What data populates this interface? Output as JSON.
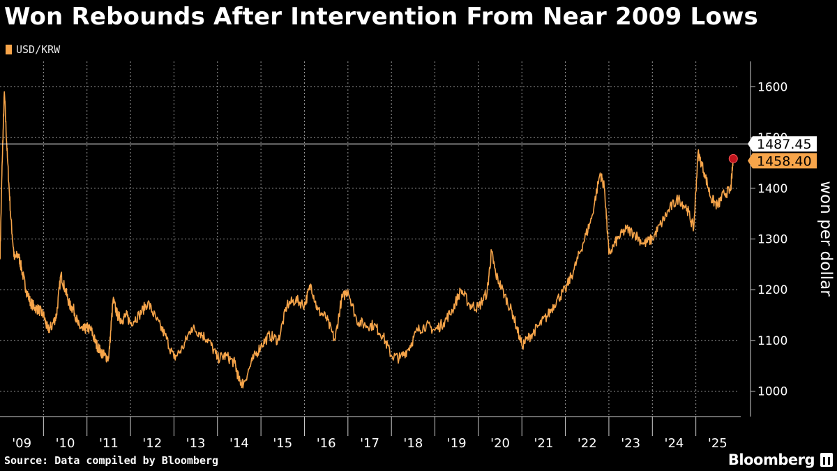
{
  "title": "Won Rebounds After Intervention From Near 2009 Lows",
  "source": "Source: Data compiled by Bloomberg",
  "brand": "Bloomberg",
  "colors": {
    "series": "#f7a54a",
    "background": "#000000",
    "marker": "#c0141c",
    "grid": "#9a9a9a"
  },
  "chart_data": {
    "type": "line",
    "title": "Won Rebounds After Intervention From Near 2009 Lows",
    "ylabel": "won per dollar",
    "ylim": [
      950,
      1650
    ],
    "yticks": [
      1000,
      1100,
      1200,
      1300,
      1400,
      1500,
      1600
    ],
    "xlim": [
      2009.0,
      2026.0
    ],
    "xtick_labels": [
      "'09",
      "'10",
      "'11",
      "'12",
      "'13",
      "'14",
      "'15",
      "'16",
      "'17",
      "'18",
      "'19",
      "'20",
      "'21",
      "'22",
      "'23",
      "'24",
      "'25"
    ],
    "grid": true,
    "legend": "top-left",
    "series": [
      {
        "name": "USD/KRW",
        "x": [
          2009.0,
          2009.05,
          2009.1,
          2009.17,
          2009.25,
          2009.33,
          2009.42,
          2009.5,
          2009.6,
          2009.7,
          2009.8,
          2009.9,
          2010.0,
          2010.1,
          2010.2,
          2010.3,
          2010.4,
          2010.5,
          2010.6,
          2010.7,
          2010.8,
          2010.9,
          2011.0,
          2011.1,
          2011.2,
          2011.3,
          2011.4,
          2011.5,
          2011.6,
          2011.7,
          2011.8,
          2011.9,
          2012.0,
          2012.2,
          2012.4,
          2012.6,
          2012.8,
          2013.0,
          2013.2,
          2013.4,
          2013.6,
          2013.8,
          2014.0,
          2014.2,
          2014.4,
          2014.5,
          2014.6,
          2014.8,
          2015.0,
          2015.2,
          2015.4,
          2015.6,
          2015.8,
          2016.0,
          2016.15,
          2016.3,
          2016.5,
          2016.7,
          2016.85,
          2017.0,
          2017.2,
          2017.4,
          2017.6,
          2017.8,
          2018.0,
          2018.2,
          2018.4,
          2018.6,
          2018.8,
          2019.0,
          2019.2,
          2019.4,
          2019.6,
          2019.8,
          2020.0,
          2020.2,
          2020.3,
          2020.4,
          2020.6,
          2020.8,
          2021.0,
          2021.2,
          2021.4,
          2021.6,
          2021.8,
          2022.0,
          2022.2,
          2022.4,
          2022.6,
          2022.8,
          2022.9,
          2023.0,
          2023.2,
          2023.4,
          2023.6,
          2023.8,
          2024.0,
          2024.2,
          2024.4,
          2024.6,
          2024.8,
          2024.95,
          2025.05,
          2025.2,
          2025.35,
          2025.5,
          2025.65,
          2025.8,
          2025.86
        ],
        "y": [
          1260,
          1450,
          1590,
          1460,
          1340,
          1260,
          1270,
          1240,
          1200,
          1175,
          1165,
          1160,
          1150,
          1120,
          1130,
          1150,
          1230,
          1200,
          1170,
          1160,
          1130,
          1120,
          1125,
          1120,
          1095,
          1080,
          1070,
          1065,
          1180,
          1150,
          1140,
          1150,
          1135,
          1150,
          1175,
          1140,
          1110,
          1065,
          1085,
          1125,
          1115,
          1100,
          1065,
          1070,
          1055,
          1020,
          1015,
          1060,
          1090,
          1110,
          1100,
          1170,
          1180,
          1170,
          1210,
          1160,
          1145,
          1100,
          1180,
          1200,
          1140,
          1130,
          1130,
          1110,
          1070,
          1065,
          1085,
          1120,
          1130,
          1120,
          1135,
          1160,
          1200,
          1170,
          1165,
          1195,
          1275,
          1230,
          1190,
          1150,
          1090,
          1110,
          1130,
          1150,
          1180,
          1200,
          1240,
          1290,
          1340,
          1430,
          1400,
          1270,
          1300,
          1320,
          1310,
          1290,
          1300,
          1330,
          1360,
          1380,
          1360,
          1320,
          1470,
          1430,
          1380,
          1365,
          1390,
          1395,
          1458.4
        ]
      }
    ],
    "annotations": [
      {
        "label": "1487.45",
        "y": 1487.45,
        "style": "horizontal-line"
      },
      {
        "label": "1458.40",
        "y": 1458.4,
        "style": "last-value"
      }
    ]
  }
}
